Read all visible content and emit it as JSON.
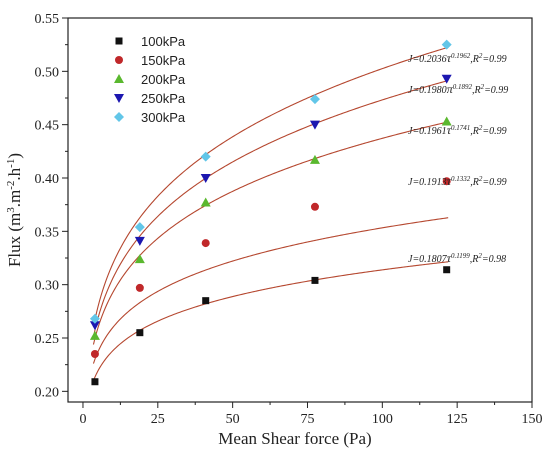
{
  "chart_data": {
    "type": "scatter",
    "title": "",
    "xlabel": "Mean Shear force (Pa)",
    "ylabel": {
      "base": "Flux (m",
      "sup1": "3",
      "mid1": ".m",
      "sup2": "-2",
      "mid2": ".h",
      "sup3": "-1",
      "end": ")"
    },
    "xlim": [
      -5,
      150
    ],
    "ylim": [
      0.19,
      0.55
    ],
    "xticks": [
      0,
      25,
      50,
      75,
      100,
      125,
      150
    ],
    "yticks": [
      0.2,
      0.25,
      0.3,
      0.35,
      0.4,
      0.45,
      0.5,
      0.55
    ],
    "xtick_labels": [
      "0",
      "25",
      "50",
      "75",
      "100",
      "125",
      "150"
    ],
    "ytick_labels": [
      "0.20",
      "0.25",
      "0.30",
      "0.35",
      "0.40",
      "0.45",
      "0.50",
      "0.55"
    ],
    "grid": false,
    "legend_position": "top-left",
    "fit_line_color": "#b5472f",
    "x": [
      4,
      19,
      41,
      77.5,
      121.5
    ],
    "series": [
      {
        "name": "100kPa",
        "marker": "square",
        "color": "#111111",
        "values": [
          0.209,
          0.255,
          0.285,
          0.304,
          0.314
        ],
        "fit": {
          "a": 0.1807,
          "b": 0.1199
        },
        "equation": {
          "lhs": "J=0.1807",
          "tau": "τ",
          "exp": "0.1199",
          "r2": ",R",
          "r2sup": "2",
          "r2val": "=0.98"
        }
      },
      {
        "name": "150kPa",
        "marker": "circle",
        "color": "#c0282a",
        "values": [
          0.235,
          0.297,
          0.339,
          0.373,
          0.397
        ],
        "fit": {
          "a": 0.1913,
          "b": 0.1332
        },
        "equation": {
          "lhs": "J=0.1913",
          "tau": "τ",
          "exp": "0.1332",
          "r2": ",R",
          "r2sup": "2",
          "r2val": "=0.99"
        }
      },
      {
        "name": "200kPa",
        "marker": "triangle-up",
        "color": "#5ab82e",
        "values": [
          0.252,
          0.324,
          0.377,
          0.417,
          0.453
        ],
        "fit": {
          "a": 0.1961,
          "b": 0.1741
        },
        "equation": {
          "lhs": "J=0.1961",
          "tau": "τ",
          "exp": "0.1741",
          "r2": ",R",
          "r2sup": "2",
          "r2val": "=0.99"
        }
      },
      {
        "name": "250kPa",
        "marker": "triangle-down",
        "color": "#1c17b0",
        "values": [
          0.262,
          0.341,
          0.4,
          0.45,
          0.493
        ],
        "fit": {
          "a": 0.198,
          "b": 0.1892
        },
        "equation": {
          "lhs": "J=0.1980",
          "tau": "π",
          "exp": "0.1892",
          "r2": ",R",
          "r2sup": "2",
          "r2val": "=0.99"
        }
      },
      {
        "name": "300kPa",
        "marker": "diamond",
        "color": "#62c6e8",
        "values": [
          0.268,
          0.354,
          0.42,
          0.474,
          0.525
        ],
        "fit": {
          "a": 0.2036,
          "b": 0.1962
        },
        "equation": {
          "lhs": "J=0.2036",
          "tau": "τ",
          "exp": "0.1962",
          "r2": ",R",
          "r2sup": "2",
          "r2val": "=0.99"
        }
      }
    ]
  }
}
